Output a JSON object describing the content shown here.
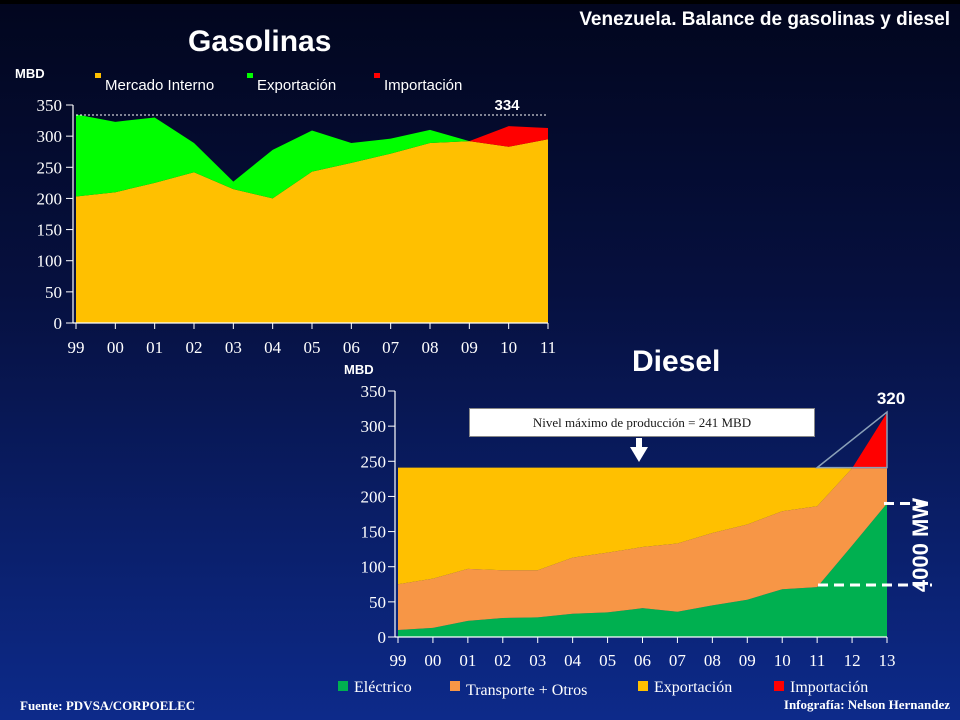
{
  "header": {
    "title": "Venezuela. Balance de gasolinas y diesel"
  },
  "footer": {
    "source": "Fuente: PDVSA/CORPOELEC",
    "credit": "Infografía: Nelson Hernandez"
  },
  "colors": {
    "mercado": "#ffc000",
    "exportacion": "#00ff00",
    "importacion": "#ff0000",
    "electrico": "#00b050",
    "transporte": "#f79646",
    "exportacion_diesel": "#ffc000"
  },
  "gasolinas": {
    "title": "Gasolinas",
    "unit": "MBD",
    "peak_label": "334"
  },
  "diesel": {
    "title": "Diesel",
    "unit": "MBD",
    "peak_label": "320",
    "note": "Nivel máximo de producción = 241 MBD",
    "capacity_label": "4000 MW"
  },
  "chart_data": [
    {
      "type": "area",
      "title": "Gasolinas",
      "ylabel": "MBD",
      "ylim": [
        0,
        350
      ],
      "yticks": [
        0,
        50,
        100,
        150,
        200,
        250,
        300,
        350
      ],
      "categories": [
        "99",
        "00",
        "01",
        "02",
        "03",
        "04",
        "05",
        "06",
        "07",
        "08",
        "09",
        "10",
        "11"
      ],
      "annotations": [
        "334"
      ],
      "series": [
        {
          "name": "Mercado Interno",
          "values": [
            203,
            210,
            225,
            242,
            215,
            200,
            243,
            257,
            272,
            289,
            292,
            283,
            295
          ]
        },
        {
          "name": "Exportación",
          "values": [
            132,
            113,
            105,
            47,
            12,
            78,
            66,
            32,
            24,
            21,
            0,
            0,
            0
          ]
        },
        {
          "name": "Importación",
          "values": [
            0,
            0,
            0,
            0,
            0,
            0,
            0,
            0,
            0,
            0,
            0,
            33,
            18
          ]
        }
      ]
    },
    {
      "type": "area",
      "title": "Diesel",
      "ylabel": "MBD",
      "ylim": [
        0,
        350
      ],
      "yticks": [
        0,
        50,
        100,
        150,
        200,
        250,
        300,
        350
      ],
      "categories": [
        "99",
        "00",
        "01",
        "02",
        "03",
        "04",
        "05",
        "06",
        "07",
        "08",
        "09",
        "10",
        "11",
        "12",
        "13"
      ],
      "annotations": [
        "320",
        "Nivel máximo de producción = 241 MBD",
        "4000 MW"
      ],
      "series": [
        {
          "name": "Eléctrico",
          "values": [
            10,
            13,
            23,
            27,
            28,
            33,
            35,
            41,
            36,
            45,
            53,
            68,
            71,
            130,
            190
          ]
        },
        {
          "name": "Transporte + Otros",
          "values": [
            65,
            70,
            74,
            68,
            67,
            80,
            85,
            87,
            97,
            103,
            107,
            111,
            115,
            110,
            50
          ]
        },
        {
          "name": "Exportación",
          "values": [
            166,
            158,
            144,
            146,
            146,
            128,
            121,
            113,
            108,
            93,
            81,
            62,
            55,
            0,
            0
          ]
        },
        {
          "name": "Importación",
          "values": [
            0,
            0,
            0,
            0,
            0,
            0,
            0,
            0,
            0,
            0,
            0,
            0,
            0,
            0,
            79
          ]
        }
      ]
    }
  ]
}
